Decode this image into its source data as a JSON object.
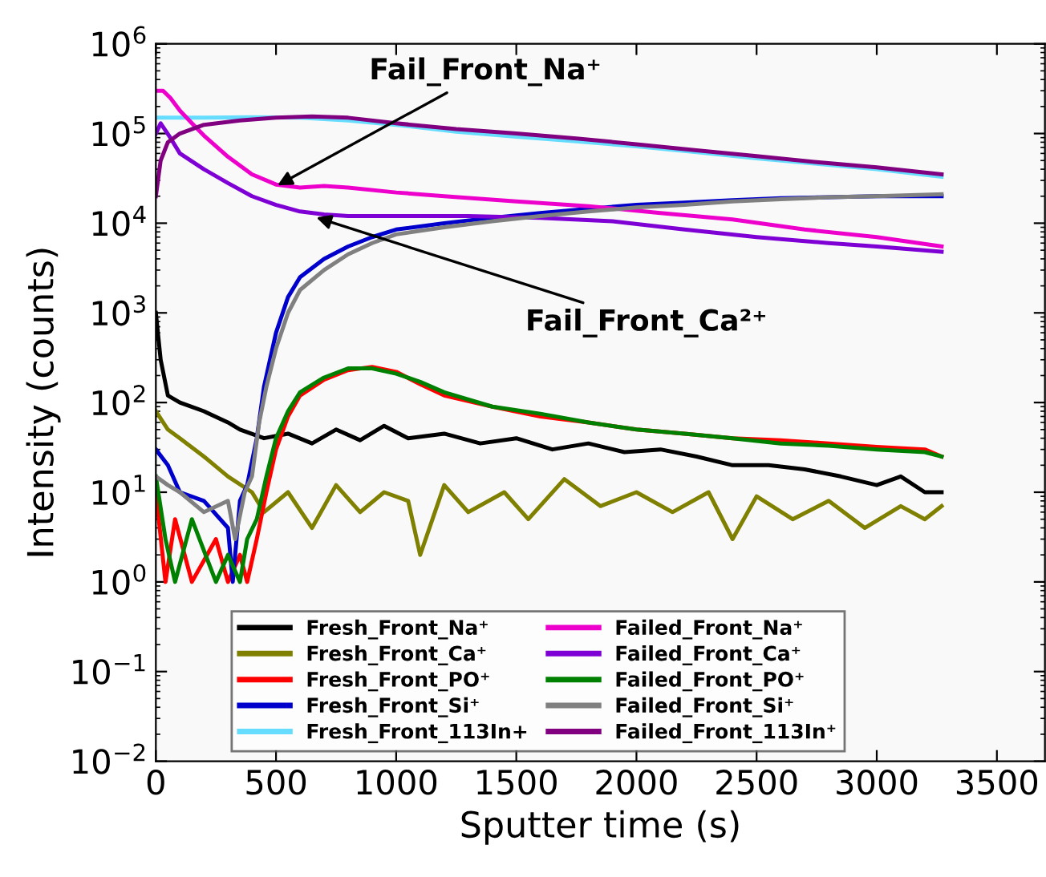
{
  "chart_data": {
    "type": "line",
    "xlabel": "Sputter time (s)",
    "ylabel": "Intensity (counts)",
    "log": "y",
    "xlim": [
      0,
      3700
    ],
    "xticks": [
      0,
      500,
      1000,
      1500,
      2000,
      2500,
      3000,
      3500
    ],
    "ylim": [
      0.01,
      1000000
    ],
    "yticks": [
      {
        "value": 0.01,
        "label": "10$^{−2}$"
      },
      {
        "value": 0.1,
        "label": "10$^{−1}$"
      },
      {
        "value": 1,
        "label": "10$^{0}$"
      },
      {
        "value": 10,
        "label": "10$^{1}$"
      },
      {
        "value": 100,
        "label": "10$^{2}$"
      },
      {
        "value": 1000,
        "label": "10$^{3}$"
      },
      {
        "value": 10000,
        "label": "10$^{4}$"
      },
      {
        "value": 100000,
        "label": "10$^{5}$"
      },
      {
        "value": 1000000,
        "label": "10$^{6}$"
      }
    ],
    "legend": "bottom",
    "grid": false,
    "line_style": "solid",
    "marker": "none",
    "annotations": [
      {
        "text": "Fail_Front_Na⁺",
        "x": 490,
        "y": 25000
      },
      {
        "text": "Fail_Front_Ca²⁺",
        "x": 650,
        "y": 12000
      }
    ],
    "series": [
      {
        "name": "Fresh_Front_Na⁺",
        "color": "#000000",
        "x": [
          0,
          20,
          50,
          100,
          200,
          300,
          350,
          450,
          550,
          650,
          750,
          850,
          950,
          1050,
          1200,
          1350,
          1500,
          1650,
          1800,
          1950,
          2100,
          2250,
          2400,
          2550,
          2700,
          2850,
          3000,
          3100,
          3200,
          3270
        ],
        "values": [
          1000,
          300,
          120,
          100,
          80,
          60,
          50,
          40,
          45,
          35,
          50,
          38,
          55,
          40,
          45,
          35,
          40,
          30,
          35,
          28,
          30,
          25,
          20,
          20,
          18,
          15,
          12,
          15,
          10,
          10
        ]
      },
      {
        "name": "Fresh_Front_Ca⁺",
        "color": "#808000",
        "x": [
          0,
          50,
          100,
          200,
          300,
          400,
          450,
          550,
          650,
          750,
          850,
          950,
          1050,
          1100,
          1200,
          1300,
          1450,
          1550,
          1700,
          1850,
          2000,
          2150,
          2300,
          2400,
          2500,
          2650,
          2800,
          2950,
          3100,
          3200,
          3270
        ],
        "values": [
          80,
          50,
          40,
          25,
          15,
          10,
          6,
          10,
          4,
          12,
          6,
          10,
          8,
          2,
          12,
          6,
          10,
          5,
          14,
          7,
          10,
          6,
          10,
          3,
          9,
          5,
          8,
          4,
          7,
          5,
          7
        ]
      },
      {
        "name": "Fresh_Front_PO⁺",
        "color": "#ff0000",
        "x": [
          0,
          40,
          80,
          150,
          250,
          300,
          350,
          380,
          420,
          460,
          500,
          550,
          600,
          700,
          800,
          900,
          1000,
          1100,
          1200,
          1400,
          1600,
          1800,
          2000,
          2200,
          2400,
          2600,
          2800,
          3000,
          3200,
          3270
        ],
        "values": [
          10,
          1,
          5,
          1,
          3,
          1,
          2,
          1,
          3,
          10,
          30,
          70,
          120,
          180,
          230,
          250,
          220,
          160,
          120,
          90,
          70,
          60,
          50,
          45,
          40,
          38,
          35,
          32,
          30,
          25
        ]
      },
      {
        "name": "Fresh_Front_Si⁺",
        "color": "#0000cc",
        "x": [
          0,
          50,
          100,
          200,
          300,
          320,
          350,
          380,
          420,
          450,
          500,
          550,
          600,
          700,
          800,
          900,
          1000,
          1200,
          1400,
          1600,
          1800,
          2000,
          2200,
          2400,
          2600,
          2800,
          3000,
          3270
        ],
        "values": [
          30,
          20,
          10,
          8,
          4,
          1,
          8,
          12,
          40,
          150,
          600,
          1500,
          2500,
          4000,
          5500,
          7000,
          8500,
          10000,
          11500,
          13000,
          14500,
          16000,
          17000,
          18000,
          19000,
          19500,
          20000,
          20000
        ]
      },
      {
        "name": "Fresh_Front_113In+",
        "color": "#66ddff",
        "x": [
          0,
          200,
          400,
          600,
          800,
          1000,
          1250,
          1500,
          1750,
          2000,
          2250,
          2500,
          2750,
          3000,
          3270
        ],
        "values": [
          150000,
          150000,
          152000,
          150000,
          140000,
          125000,
          105000,
          92000,
          82000,
          72000,
          62000,
          53000,
          46000,
          40000,
          33000
        ]
      },
      {
        "name": "Failed_Front_Na⁺",
        "color": "#ee00cc",
        "x": [
          0,
          30,
          60,
          100,
          150,
          200,
          300,
          400,
          500,
          600,
          700,
          800,
          1000,
          1200,
          1500,
          1800,
          2100,
          2400,
          2700,
          3000,
          3270
        ],
        "values": [
          300000,
          300000,
          250000,
          180000,
          130000,
          95000,
          55000,
          35000,
          27000,
          25000,
          26000,
          25000,
          22000,
          20000,
          17500,
          15500,
          13000,
          11000,
          8500,
          7000,
          5500
        ]
      },
      {
        "name": "Failed_Front_Ca⁺",
        "color": "#7f00d4",
        "x": [
          0,
          20,
          60,
          100,
          200,
          300,
          400,
          500,
          600,
          700,
          800,
          1000,
          1300,
          1600,
          1900,
          2200,
          2500,
          2800,
          3000,
          3270
        ],
        "values": [
          100000,
          130000,
          90000,
          60000,
          40000,
          28000,
          20000,
          16000,
          13500,
          12500,
          12000,
          12000,
          12000,
          11500,
          10500,
          8500,
          7000,
          6000,
          5500,
          4800
        ]
      },
      {
        "name": "Failed_Front_PO⁺",
        "color": "#008000",
        "x": [
          0,
          40,
          80,
          150,
          250,
          300,
          350,
          380,
          420,
          460,
          500,
          550,
          600,
          700,
          800,
          900,
          1000,
          1100,
          1200,
          1400,
          1600,
          1800,
          2000,
          2200,
          2400,
          2600,
          2800,
          3000,
          3200,
          3270
        ],
        "values": [
          15,
          3,
          1,
          5,
          1,
          2,
          1,
          3,
          5,
          15,
          40,
          80,
          130,
          190,
          240,
          240,
          210,
          170,
          130,
          90,
          75,
          60,
          50,
          45,
          40,
          35,
          33,
          30,
          28,
          25
        ]
      },
      {
        "name": "Failed_Front_Si⁺",
        "color": "#808080",
        "x": [
          0,
          50,
          100,
          200,
          300,
          330,
          370,
          400,
          430,
          460,
          500,
          550,
          600,
          700,
          800,
          900,
          1000,
          1200,
          1400,
          1600,
          1800,
          2000,
          2200,
          2400,
          2600,
          2800,
          3000,
          3270
        ],
        "values": [
          15,
          12,
          10,
          6,
          8,
          3,
          10,
          15,
          60,
          150,
          400,
          1000,
          1800,
          3000,
          4500,
          6000,
          7500,
          9000,
          10500,
          12000,
          13500,
          15000,
          16000,
          17500,
          18500,
          19500,
          20000,
          21000
        ]
      },
      {
        "name": "Failed_Front_113In⁺",
        "color": "#800080",
        "x": [
          0,
          20,
          50,
          100,
          200,
          350,
          500,
          650,
          800,
          1000,
          1250,
          1500,
          1750,
          2000,
          2250,
          2500,
          2750,
          3000,
          3270
        ],
        "values": [
          20000,
          50000,
          80000,
          100000,
          125000,
          140000,
          150000,
          155000,
          150000,
          130000,
          112000,
          100000,
          88000,
          76000,
          65000,
          56000,
          48000,
          42000,
          35000
        ]
      }
    ]
  }
}
